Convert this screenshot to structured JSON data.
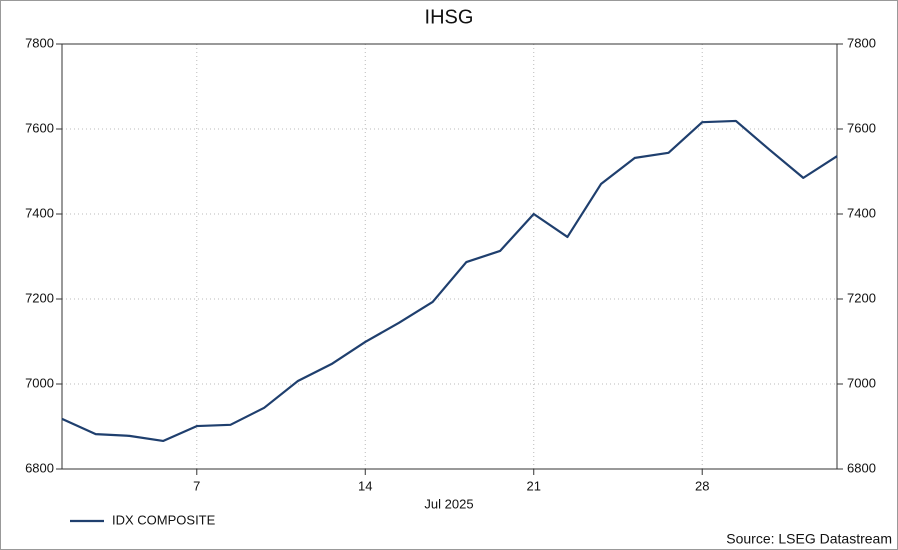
{
  "chart_data": {
    "type": "line",
    "title": "IHSG",
    "categories": [
      null,
      null,
      null,
      null,
      "7",
      null,
      null,
      null,
      null,
      "14",
      null,
      null,
      null,
      null,
      "21",
      null,
      null,
      null,
      null,
      "28",
      null,
      null,
      null,
      null
    ],
    "x_label": "Jul 2025",
    "series": [
      {
        "name": "IDX COMPOSITE",
        "color": "#1f3f6e",
        "values": [
          6918,
          6882,
          6878,
          6866,
          6901,
          6904,
          6944,
          7007,
          7047,
          7099,
          7144,
          7193,
          7287,
          7313,
          7400,
          7346,
          7471,
          7532,
          7544,
          7616,
          7619,
          7551,
          7485,
          7536
        ]
      }
    ],
    "ylim": [
      6800,
      7800
    ],
    "yticks": [
      6800,
      7000,
      7200,
      7400,
      7600,
      7800
    ],
    "y2lim": [
      6800,
      7800
    ],
    "y2ticks": [
      6800,
      7000,
      7200,
      7400,
      7600,
      7800
    ],
    "grid": true,
    "legend": "bottom-left",
    "source": "Source: LSEG Datastream"
  }
}
